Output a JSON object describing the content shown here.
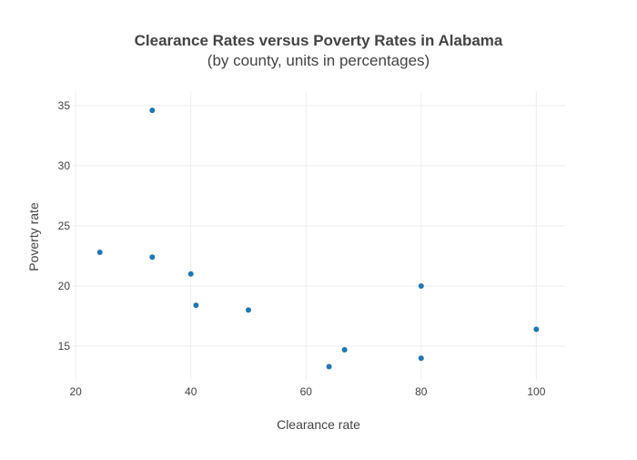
{
  "chart_data": {
    "type": "scatter",
    "title": "Clearance Rates versus Poverty Rates in Alabama",
    "subtitle": "(by county, units in percentages)",
    "xlabel": "Clearance rate",
    "ylabel": "Poverty rate",
    "xlim": [
      19.5,
      105
    ],
    "ylim": [
      12.2,
      36.2
    ],
    "xticks": [
      20,
      40,
      60,
      80,
      100
    ],
    "yticks": [
      15,
      20,
      25,
      30,
      35
    ],
    "grid": true,
    "legend": "none",
    "series": [
      {
        "color": "#1f77b4",
        "points": [
          {
            "x": 33.3,
            "y": 34.6
          },
          {
            "x": 24.2,
            "y": 22.8
          },
          {
            "x": 33.3,
            "y": 22.4
          },
          {
            "x": 40.0,
            "y": 21.0
          },
          {
            "x": 40.9,
            "y": 18.4
          },
          {
            "x": 50.0,
            "y": 18.0
          },
          {
            "x": 80.0,
            "y": 20.0
          },
          {
            "x": 100.0,
            "y": 16.4
          },
          {
            "x": 66.7,
            "y": 14.7
          },
          {
            "x": 64.0,
            "y": 13.3
          },
          {
            "x": 80.0,
            "y": 14.0
          }
        ]
      }
    ]
  }
}
